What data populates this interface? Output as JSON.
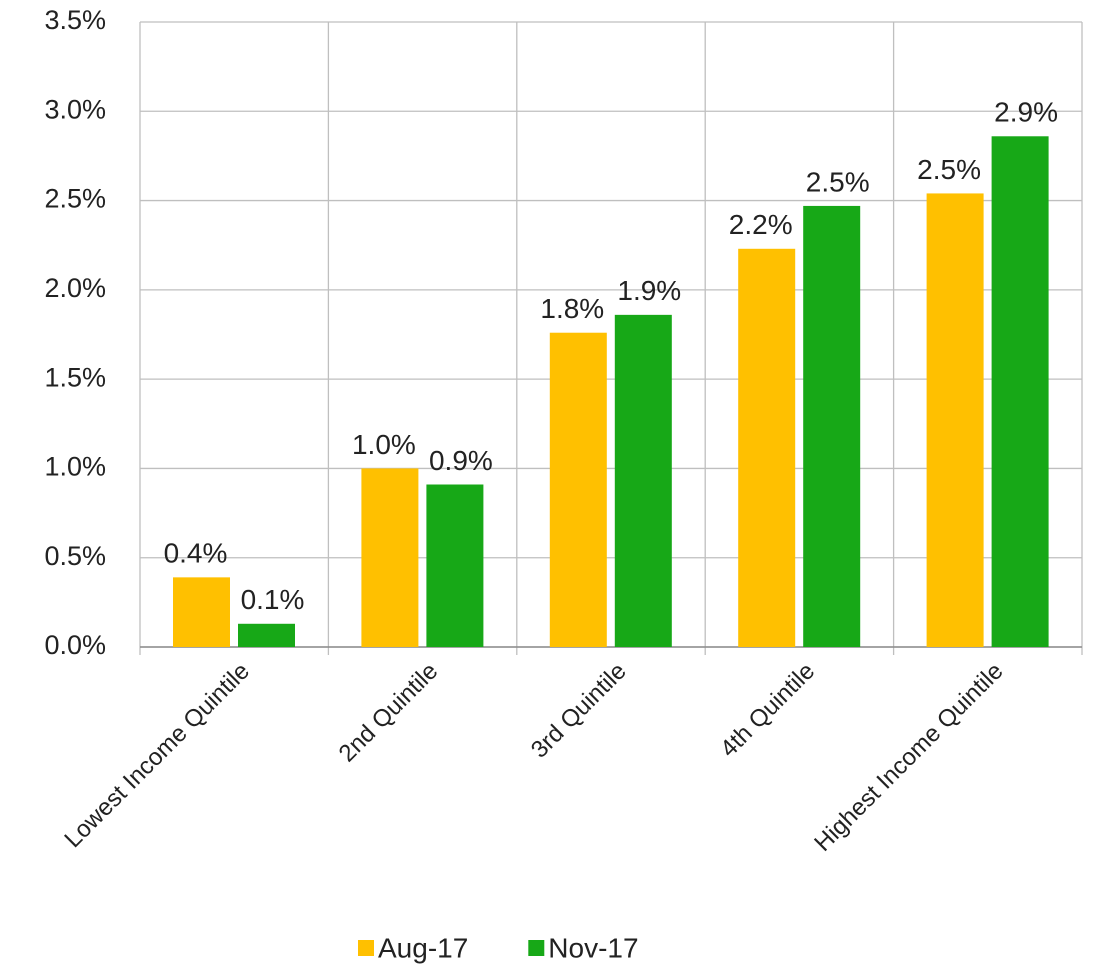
{
  "chart_data": {
    "type": "bar",
    "categories": [
      "Lowest Income Quintile",
      "2nd Quintile",
      "3rd Quintile",
      "4th Quintile",
      "Highest Income Quintile"
    ],
    "series": [
      {
        "name": "Aug-17",
        "color": "#ffc000",
        "values": [
          0.39,
          1.0,
          1.76,
          2.23,
          2.54
        ],
        "value_labels": [
          "0.4%",
          "1.0%",
          "1.8%",
          "2.2%",
          "2.5%"
        ]
      },
      {
        "name": "Nov-17",
        "color": "#17a817",
        "values": [
          0.13,
          0.91,
          1.86,
          2.47,
          2.86
        ],
        "value_labels": [
          "0.1%",
          "0.9%",
          "1.9%",
          "2.5%",
          "2.9%"
        ]
      }
    ],
    "ylim": [
      0,
      3.5
    ],
    "yticks": [
      {
        "value": 0,
        "label": "0.0%"
      },
      {
        "value": 0.5,
        "label": "0.5%"
      },
      {
        "value": 1.0,
        "label": "1.0%"
      },
      {
        "value": 1.5,
        "label": "1.5%"
      },
      {
        "value": 2.0,
        "label": "2.0%"
      },
      {
        "value": 2.5,
        "label": "2.5%"
      },
      {
        "value": 3.0,
        "label": "3.0%"
      },
      {
        "value": 3.5,
        "label": "3.5%"
      }
    ],
    "grid": true,
    "legend": "bottom"
  }
}
